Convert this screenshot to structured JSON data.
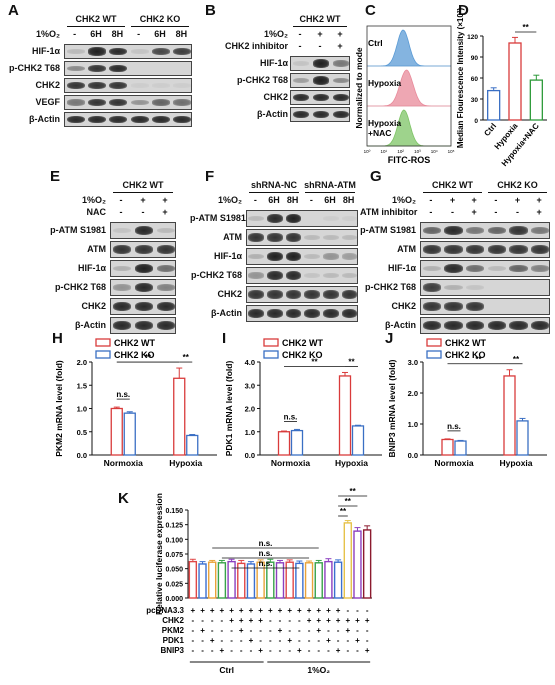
{
  "panel_labels": [
    "A",
    "B",
    "C",
    "D",
    "E",
    "F",
    "G",
    "H",
    "I",
    "J",
    "K"
  ],
  "o2_label": "1%O₂",
  "blots": {
    "A": {
      "groups": [
        "CHK2 WT",
        "CHK2 KO"
      ],
      "treatment_label": "1%O₂",
      "lanes": [
        "-",
        "6H",
        "8H",
        "-",
        "6H",
        "8H"
      ],
      "rows": [
        {
          "label": "HIF-1α",
          "intensity": [
            0.15,
            0.95,
            0.9,
            0.1,
            0.75,
            0.8
          ]
        },
        {
          "label": "p-CHK2 T68",
          "intensity": [
            0.4,
            0.85,
            0.9,
            0.0,
            0.0,
            0.0
          ]
        },
        {
          "label": "CHK2",
          "intensity": [
            0.85,
            0.85,
            0.85,
            0.05,
            0.05,
            0.05
          ]
        },
        {
          "label": "VEGF",
          "intensity": [
            0.5,
            0.85,
            0.85,
            0.35,
            0.6,
            0.55
          ]
        },
        {
          "label": "β-Actin",
          "intensity": [
            0.9,
            0.9,
            0.9,
            0.9,
            0.9,
            0.9
          ]
        }
      ]
    },
    "B": {
      "groups": [
        "CHK2 WT"
      ],
      "treatments": [
        {
          "label": "1%O₂",
          "signs": [
            "-",
            "+",
            "+"
          ]
        },
        {
          "label": "CHK2 inhibitor",
          "signs": [
            "-",
            "-",
            "+"
          ]
        }
      ],
      "rows": [
        {
          "label": "HIF-1α",
          "intensity": [
            0.1,
            0.95,
            0.5
          ]
        },
        {
          "label": "p-CHK2 T68",
          "intensity": [
            0.3,
            0.95,
            0.4
          ]
        },
        {
          "label": "CHK2",
          "intensity": [
            0.9,
            0.9,
            0.9
          ]
        },
        {
          "label": "β-Actin",
          "intensity": [
            0.9,
            0.9,
            0.9
          ]
        }
      ]
    },
    "E": {
      "groups": [
        "CHK2 WT"
      ],
      "treatments": [
        {
          "label": "1%O₂",
          "signs": [
            "-",
            "+",
            "+"
          ]
        },
        {
          "label": "NAC",
          "signs": [
            "-",
            "-",
            "+"
          ]
        }
      ],
      "rows": [
        {
          "label": "p-ATM S1981",
          "intensity": [
            0.1,
            0.9,
            0.15
          ]
        },
        {
          "label": "ATM",
          "intensity": [
            0.85,
            0.85,
            0.85
          ]
        },
        {
          "label": "HIF-1α",
          "intensity": [
            0.2,
            0.95,
            0.55
          ]
        },
        {
          "label": "p-CHK2 T68",
          "intensity": [
            0.35,
            0.9,
            0.45
          ]
        },
        {
          "label": "CHK2",
          "intensity": [
            0.9,
            0.9,
            0.9
          ]
        },
        {
          "label": "β-Actin",
          "intensity": [
            0.9,
            0.9,
            0.9
          ]
        }
      ]
    },
    "F": {
      "groups": [
        "shRNA-NC",
        "shRNA-ATM"
      ],
      "treatment_label": "1%O₂",
      "lanes": [
        "-",
        "6H",
        "8H",
        "-",
        "6H",
        "8H"
      ],
      "rows": [
        {
          "label": "p-ATM S1981",
          "intensity": [
            0.15,
            0.9,
            0.95,
            0.0,
            0.05,
            0.05
          ]
        },
        {
          "label": "ATM",
          "intensity": [
            0.85,
            0.85,
            0.85,
            0.15,
            0.15,
            0.15
          ]
        },
        {
          "label": "HIF-1α",
          "intensity": [
            0.2,
            0.95,
            0.95,
            0.15,
            0.35,
            0.3
          ]
        },
        {
          "label": "p-CHK2 T68",
          "intensity": [
            0.35,
            0.9,
            0.9,
            0.1,
            0.15,
            0.15
          ]
        },
        {
          "label": "CHK2",
          "intensity": [
            0.85,
            0.85,
            0.85,
            0.85,
            0.85,
            0.85
          ]
        },
        {
          "label": "β-Actin",
          "intensity": [
            0.9,
            0.9,
            0.9,
            0.9,
            0.9,
            0.9
          ]
        }
      ]
    },
    "G": {
      "groups": [
        "CHK2 WT",
        "CHK2 KO"
      ],
      "treatments": [
        {
          "label": "1%O₂",
          "signs": [
            "-",
            "+",
            "+",
            "-",
            "+",
            "+"
          ]
        },
        {
          "label": "ATM inhibitor",
          "signs": [
            "-",
            "-",
            "+",
            "-",
            "-",
            "+"
          ]
        }
      ],
      "rows": [
        {
          "label": "p-ATM S1981",
          "intensity": [
            0.6,
            0.9,
            0.5,
            0.6,
            0.85,
            0.5
          ]
        },
        {
          "label": "ATM",
          "intensity": [
            0.85,
            0.85,
            0.85,
            0.85,
            0.85,
            0.85
          ]
        },
        {
          "label": "HIF-1α",
          "intensity": [
            0.2,
            0.9,
            0.55,
            0.15,
            0.6,
            0.45
          ]
        },
        {
          "label": "p-CHK2 T68",
          "intensity": [
            0.8,
            0.2,
            0.1,
            0.0,
            0.0,
            0.0
          ]
        },
        {
          "label": "CHK2",
          "intensity": [
            0.85,
            0.85,
            0.85,
            0.0,
            0.0,
            0.0
          ]
        },
        {
          "label": "β-Actin",
          "intensity": [
            0.9,
            0.9,
            0.9,
            0.9,
            0.9,
            0.9
          ]
        }
      ]
    }
  },
  "flow_C": {
    "ylabel": "Normalized to mode",
    "xlabel": "FITC-ROS",
    "xticks": [
      "10⁰",
      "10¹",
      "10²",
      "10³",
      "10⁴",
      "10⁵"
    ],
    "tracks": [
      {
        "label": "Ctrl",
        "color": "#5b9bd5",
        "peak_log": 2.15,
        "width": 0.5
      },
      {
        "label": "Hypoxia",
        "color": "#e88a9a",
        "peak_log": 2.35,
        "width": 0.55
      },
      {
        "label": "Hypoxia\n+NAC",
        "color": "#7ec466",
        "peak_log": 2.2,
        "width": 0.5
      }
    ]
  },
  "chart_data": [
    {
      "panel": "D",
      "type": "bar",
      "categories": [
        "Ctrl",
        "Hypoxia",
        "Hypoxia+NAC"
      ],
      "values": [
        42,
        110,
        57
      ],
      "errors": [
        4,
        8,
        7
      ],
      "colors": [
        "#3a6fc4",
        "#d93b3b",
        "#2e9a3a"
      ],
      "ylabel": "Median Flourescence Intensity (×10²)",
      "ylim": [
        0,
        120
      ],
      "yticks": [
        0,
        30,
        60,
        90,
        120
      ],
      "annotations": [
        {
          "from": 1,
          "to": 2,
          "text": "**"
        }
      ]
    },
    {
      "panel": "H",
      "type": "bar",
      "categories": [
        "Normoxia",
        "Hypoxia"
      ],
      "series": [
        {
          "name": "CHK2 WT",
          "color": "#d93b3b",
          "values": [
            1.0,
            1.65
          ],
          "errors": [
            0.03,
            0.22
          ]
        },
        {
          "name": "CHK2 KO",
          "color": "#3a6fc4",
          "values": [
            0.9,
            0.42
          ],
          "errors": [
            0.03,
            0.02
          ]
        }
      ],
      "ylabel": "PKM2 mRNA level (fold)",
      "ylim": [
        0,
        2.0
      ],
      "yticks": [
        0.0,
        0.5,
        1.0,
        1.5,
        2.0
      ],
      "annotations": [
        "n.s.",
        "**",
        "**"
      ]
    },
    {
      "panel": "I",
      "type": "bar",
      "categories": [
        "Normoxia",
        "Hypoxia"
      ],
      "series": [
        {
          "name": "CHK2 WT",
          "color": "#d93b3b",
          "values": [
            1.0,
            3.4
          ],
          "errors": [
            0.03,
            0.15
          ]
        },
        {
          "name": "CHK2 KO",
          "color": "#3a6fc4",
          "values": [
            1.05,
            1.25
          ],
          "errors": [
            0.05,
            0.03
          ]
        }
      ],
      "ylabel": "PDK1 mRNA level (fold)",
      "ylim": [
        0,
        4.0
      ],
      "yticks": [
        0.0,
        1.0,
        2.0,
        3.0,
        4.0
      ],
      "annotations": [
        "n.s.",
        "**",
        "**"
      ]
    },
    {
      "panel": "J",
      "type": "bar",
      "categories": [
        "Normoxia",
        "Hypoxia"
      ],
      "series": [
        {
          "name": "CHK2 WT",
          "color": "#d93b3b",
          "values": [
            0.5,
            2.55
          ],
          "errors": [
            0.02,
            0.2
          ]
        },
        {
          "name": "CHK2 KO",
          "color": "#3a6fc4",
          "values": [
            0.45,
            1.1
          ],
          "errors": [
            0.02,
            0.08
          ]
        }
      ],
      "ylabel": "BNIP3 mRNA level (fold)",
      "ylim": [
        0,
        3.0
      ],
      "yticks": [
        0.0,
        1.0,
        2.0,
        3.0
      ],
      "annotations": [
        "n.s.",
        "**",
        "**"
      ]
    },
    {
      "panel": "K",
      "type": "bar",
      "values": [
        0.062,
        0.058,
        0.061,
        0.06,
        0.062,
        0.059,
        0.058,
        0.061,
        0.061,
        0.06,
        0.061,
        0.059,
        0.06,
        0.06,
        0.062,
        0.061,
        0.128,
        0.114,
        0.116
      ],
      "errors": [
        0.004,
        0.004,
        0.003,
        0.004,
        0.004,
        0.005,
        0.004,
        0.004,
        0.005,
        0.004,
        0.004,
        0.004,
        0.003,
        0.004,
        0.005,
        0.004,
        0.004,
        0.006,
        0.007
      ],
      "colors": [
        "#e04848",
        "#3b6fd0",
        "#e9a33a",
        "#38a24a",
        "#8c3fbf",
        "#e04848",
        "#3b6fd0",
        "#e9a33a",
        "#38a24a",
        "#8c3fbf",
        "#e04848",
        "#3b6fd0",
        "#e9a33a",
        "#38a24a",
        "#8c3fbf",
        "#3b6fd0",
        "#e6c24a",
        "#8c3fbf",
        "#8b1a2e"
      ],
      "ylabel": "Relative luciferase expression",
      "ylim": [
        0,
        0.15
      ],
      "yticks": [
        0.0,
        0.025,
        0.05,
        0.075,
        0.1,
        0.125,
        0.15
      ],
      "ytick_labels": [
        "0.000",
        "0.025",
        "0.050",
        "0.075",
        "0.100",
        "0.125",
        "0.150"
      ],
      "conditions": [
        {
          "label": "pcDNA3.3",
          "signs": [
            "+",
            "+",
            "+",
            "+",
            "+",
            "+",
            "+",
            "+",
            "+",
            "+",
            "+",
            "+",
            "+",
            "+",
            "+",
            "+",
            "-",
            "-",
            "-"
          ]
        },
        {
          "label": "CHK2",
          "signs": [
            "-",
            "-",
            "-",
            "-",
            "+",
            "+",
            "+",
            "+",
            "-",
            "-",
            "-",
            "-",
            "+",
            "+",
            "+",
            "+",
            "+",
            "+",
            "+"
          ]
        },
        {
          "label": "PKM2",
          "signs": [
            "-",
            "+",
            "-",
            "-",
            "-",
            "+",
            "-",
            "-",
            "-",
            "+",
            "-",
            "-",
            "-",
            "+",
            "-",
            "-",
            "+",
            "-",
            "-"
          ]
        },
        {
          "label": "PDK1",
          "signs": [
            "-",
            "-",
            "+",
            "-",
            "-",
            "-",
            "+",
            "-",
            "-",
            "-",
            "+",
            "-",
            "-",
            "-",
            "+",
            "-",
            "-",
            "+",
            "-"
          ]
        },
        {
          "label": "BNIP3",
          "signs": [
            "-",
            "-",
            "-",
            "+",
            "-",
            "-",
            "-",
            "+",
            "-",
            "-",
            "-",
            "+",
            "-",
            "-",
            "-",
            "+",
            "-",
            "-",
            "+"
          ]
        }
      ],
      "groups": [
        "Ctrl",
        "1%O₂"
      ],
      "annotations": [
        "n.s.",
        "n.s.",
        "n.s.",
        "**",
        "**",
        "**"
      ]
    }
  ]
}
